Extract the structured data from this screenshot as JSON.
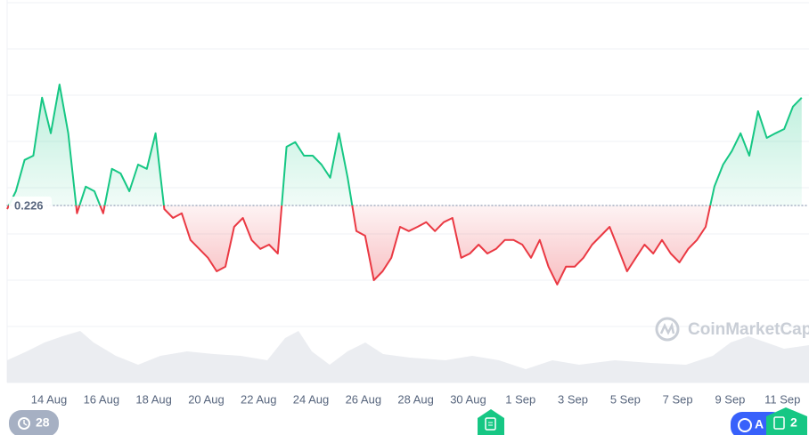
{
  "chart_data": {
    "type": "line",
    "values": [
      0.225,
      0.23,
      0.2388,
      0.24,
      0.2563,
      0.2463,
      0.26,
      0.2463,
      0.2238,
      0.2313,
      0.23,
      0.2238,
      0.2363,
      0.235,
      0.23,
      0.2375,
      0.2363,
      0.2463,
      0.225,
      0.2225,
      0.2238,
      0.2163,
      0.2138,
      0.2113,
      0.2075,
      0.2088,
      0.22,
      0.2225,
      0.2163,
      0.2138,
      0.215,
      0.2125,
      0.2425,
      0.2438,
      0.24,
      0.24,
      0.2375,
      0.2338,
      0.2463,
      0.2338,
      0.2188,
      0.2175,
      0.205,
      0.2075,
      0.2113,
      0.22,
      0.2188,
      0.22,
      0.2213,
      0.2188,
      0.2213,
      0.2225,
      0.2113,
      0.2125,
      0.215,
      0.2125,
      0.2138,
      0.2163,
      0.2163,
      0.215,
      0.2113,
      0.2163,
      0.2088,
      0.2038,
      0.2088,
      0.2088,
      0.2113,
      0.215,
      0.2175,
      0.22,
      0.2138,
      0.2075,
      0.2113,
      0.215,
      0.2125,
      0.2163,
      0.2125,
      0.21,
      0.2138,
      0.2163,
      0.22,
      0.2313,
      0.2375,
      0.2413,
      0.2463,
      0.24,
      0.2525,
      0.245,
      0.2463,
      0.2475,
      0.2538,
      0.2563
    ],
    "baseline": 0.226,
    "color_up": "#16c784",
    "color_down": "#ea3943",
    "ylim": [
      0.2,
      0.27
    ],
    "xlim": [
      0,
      91
    ],
    "xticks": [
      {
        "value": 4.8,
        "label": "14 Aug"
      },
      {
        "value": 10.8,
        "label": "16 Aug"
      },
      {
        "value": 16.8,
        "label": "18 Aug"
      },
      {
        "value": 22.8,
        "label": "20 Aug"
      },
      {
        "value": 28.8,
        "label": "22 Aug"
      },
      {
        "value": 34.8,
        "label": "24 Aug"
      },
      {
        "value": 40.8,
        "label": "26 Aug"
      },
      {
        "value": 46.8,
        "label": "28 Aug"
      },
      {
        "value": 52.8,
        "label": "30 Aug"
      },
      {
        "value": 58.8,
        "label": "1 Sep"
      },
      {
        "value": 64.8,
        "label": "3 Sep"
      },
      {
        "value": 70.8,
        "label": "5 Sep"
      },
      {
        "value": 76.8,
        "label": "7 Sep"
      },
      {
        "value": 82.8,
        "label": "9 Sep"
      },
      {
        "value": 88.8,
        "label": "11 Sep"
      }
    ],
    "watermark": "CoinMarketCap",
    "badges": {
      "left": "28",
      "right_blue": "A",
      "right_green": "2"
    }
  }
}
